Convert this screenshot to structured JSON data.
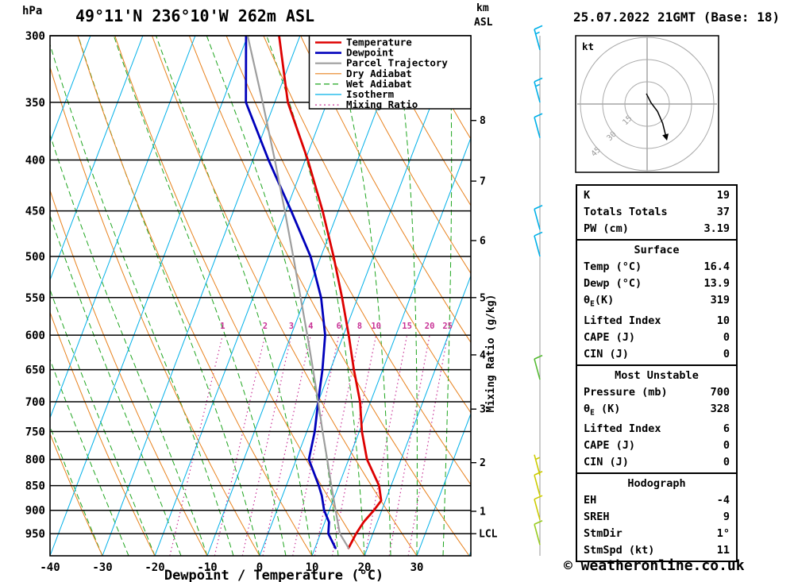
{
  "header": {
    "station_title": "49°11'N 236°10'W 262m ASL",
    "datetime_title": "25.07.2022 21GMT (Base: 18)"
  },
  "footer": {
    "credit": "© weatheronline.co.uk"
  },
  "axes": {
    "pressure_unit": "hPa",
    "pressure_ticks": [
      300,
      350,
      400,
      450,
      500,
      550,
      600,
      650,
      700,
      750,
      800,
      850,
      900,
      950
    ],
    "temp_ticks": [
      -40,
      -30,
      -20,
      -10,
      0,
      10,
      20,
      30
    ],
    "x_label": "Dewpoint / Temperature (°C)",
    "mixing_axis_label": "Mixing Ratio (g/kg)",
    "km_unit_top": "km",
    "asl_unit_top": "ASL",
    "km_ticks": [
      {
        "km": 1,
        "p": 902
      },
      {
        "km": 2,
        "p": 806
      },
      {
        "km": 3,
        "p": 712
      },
      {
        "km": 4,
        "p": 628
      },
      {
        "km": 5,
        "p": 550
      },
      {
        "km": 6,
        "p": 482
      },
      {
        "km": 7,
        "p": 420
      },
      {
        "km": 8,
        "p": 365
      }
    ],
    "lcl": {
      "label": "LCL",
      "p": 950
    }
  },
  "legend": [
    {
      "label": "Temperature",
      "color": "#dd0000",
      "style": "solid",
      "width": 2.6
    },
    {
      "label": "Dewpoint",
      "color": "#0000bb",
      "style": "solid",
      "width": 2.6
    },
    {
      "label": "Parcel Trajectory",
      "color": "#9e9e9e",
      "style": "solid",
      "width": 2.2
    },
    {
      "label": "Dry Adiabat",
      "color": "#e8821e",
      "style": "solid",
      "width": 1.2
    },
    {
      "label": "Wet Adiabat",
      "color": "#1ea51e",
      "style": "dashed",
      "width": 1.2
    },
    {
      "label": "Isotherm",
      "color": "#00b0e8",
      "style": "solid",
      "width": 1.2
    },
    {
      "label": "Mixing Ratio",
      "color": "#c83296",
      "style": "dotted",
      "width": 1.2
    }
  ],
  "chart_data": {
    "type": "line",
    "title": "Skew-T log-P sounding diagram",
    "x_axis": {
      "label": "Dewpoint / Temperature (°C)",
      "range": [
        -40,
        40
      ],
      "unit": "°C"
    },
    "y_axis": {
      "label": "hPa",
      "scale": "log",
      "range": [
        1000,
        300
      ],
      "unit": "hPa"
    },
    "surface": {
      "temp_c": 16.4,
      "dewp_c": 13.9,
      "elevation_m": 262
    },
    "series": [
      {
        "name": "Temperature",
        "color": "#dd0000",
        "points": [
          [
            982,
            16.4
          ],
          [
            950,
            16.8
          ],
          [
            925,
            17.4
          ],
          [
            900,
            18.5
          ],
          [
            880,
            19.2
          ],
          [
            850,
            17.7
          ],
          [
            800,
            13.5
          ],
          [
            750,
            10.5
          ],
          [
            700,
            8.0
          ],
          [
            650,
            4.5
          ],
          [
            600,
            1.0
          ],
          [
            550,
            -3.0
          ],
          [
            500,
            -7.6
          ],
          [
            450,
            -13.0
          ],
          [
            400,
            -19.5
          ],
          [
            350,
            -27.5
          ],
          [
            300,
            -34.0
          ]
        ]
      },
      {
        "name": "Dewpoint",
        "color": "#0000bb",
        "points": [
          [
            982,
            13.9
          ],
          [
            950,
            11.5
          ],
          [
            925,
            10.8
          ],
          [
            900,
            9.0
          ],
          [
            870,
            7.5
          ],
          [
            850,
            6.2
          ],
          [
            800,
            2.4
          ],
          [
            750,
            1.5
          ],
          [
            700,
            0.0
          ],
          [
            650,
            -1.5
          ],
          [
            600,
            -3.5
          ],
          [
            550,
            -7.0
          ],
          [
            500,
            -12.0
          ],
          [
            450,
            -19.0
          ],
          [
            400,
            -27.0
          ],
          [
            350,
            -35.5
          ],
          [
            300,
            -40.3
          ]
        ]
      },
      {
        "name": "Parcel Trajectory",
        "color": "#9e9e9e",
        "points": [
          [
            982,
            16.4
          ],
          [
            950,
            13.7
          ],
          [
            900,
            11.2
          ],
          [
            850,
            8.6
          ],
          [
            800,
            5.9
          ],
          [
            750,
            3.0
          ],
          [
            700,
            0.0
          ],
          [
            650,
            -3.3
          ],
          [
            600,
            -6.9
          ],
          [
            550,
            -10.9
          ],
          [
            500,
            -15.3
          ],
          [
            450,
            -20.2
          ],
          [
            400,
            -25.8
          ],
          [
            350,
            -32.3
          ],
          [
            300,
            -40.0
          ]
        ]
      }
    ],
    "mixing_ratio_lines": [
      1,
      2,
      3,
      4,
      6,
      8,
      10,
      15,
      20,
      25
    ],
    "isotherm_range": [
      -70,
      40
    ],
    "isotherm_step": 10,
    "dry_adiabat_range": [
      -40,
      120
    ],
    "dry_adiabat_step": 10,
    "wet_adiabat_range": [
      -30,
      35
    ],
    "wet_adiabat_step": 5,
    "style": {
      "isobar": "#000000",
      "isotherm": "#00b0e8",
      "dry_adiabat": "#e8821e",
      "wet_adiabat": "#1ea51e",
      "mixing_ratio": "#c83296",
      "temperature": "#dd0000",
      "dewpoint": "#0000bb",
      "parcel": "#9e9e9e"
    },
    "wind_barbs": [
      {
        "p": 310,
        "speed_kt": 15,
        "color": "#00b0e8"
      },
      {
        "p": 350,
        "speed_kt": 15,
        "color": "#00b0e8"
      },
      {
        "p": 380,
        "speed_kt": 10,
        "color": "#00b0e8"
      },
      {
        "p": 470,
        "speed_kt": 10,
        "color": "#00b0e8"
      },
      {
        "p": 500,
        "speed_kt": 10,
        "color": "#00b0e8"
      },
      {
        "p": 665,
        "speed_kt": 10,
        "color": "#55bb33"
      },
      {
        "p": 830,
        "speed_kt": 5,
        "color": "#cccc00"
      },
      {
        "p": 870,
        "speed_kt": 10,
        "color": "#cccc00"
      },
      {
        "p": 920,
        "speed_kt": 10,
        "color": "#cccc00"
      },
      {
        "p": 975,
        "speed_kt": 10,
        "color": "#99cc22"
      }
    ],
    "hodograph": {
      "unit_label": "kt",
      "rings_kt": [
        15,
        30,
        45
      ],
      "trace_kt": [
        [
          -0.5,
          -7
        ],
        [
          2.5,
          -1
        ],
        [
          7,
          5
        ],
        [
          10.5,
          13
        ],
        [
          12.5,
          21
        ]
      ]
    }
  },
  "tables": [
    {
      "rows": [
        {
          "label": "K",
          "value": "19"
        },
        {
          "label": "Totals Totals",
          "value": "37"
        },
        {
          "label": "PW (cm)",
          "value": "3.19"
        }
      ]
    },
    {
      "header": "Surface",
      "rows": [
        {
          "label": "Temp (°C)",
          "value": "16.4"
        },
        {
          "label": "Dewp (°C)",
          "value": "13.9"
        },
        {
          "label": "θ",
          "sub": "E",
          "after": "(K)",
          "value": "319"
        },
        {
          "label": "Lifted Index",
          "value": "10"
        },
        {
          "label": "CAPE (J)",
          "value": "0"
        },
        {
          "label": "CIN (J)",
          "value": "0"
        }
      ]
    },
    {
      "header": "Most Unstable",
      "rows": [
        {
          "label": "Pressure (mb)",
          "value": "700"
        },
        {
          "label": "θ",
          "sub": "E",
          "after": " (K)",
          "value": "328"
        },
        {
          "label": "Lifted Index",
          "value": "6"
        },
        {
          "label": "CAPE (J)",
          "value": "0"
        },
        {
          "label": "CIN (J)",
          "value": "0"
        }
      ]
    },
    {
      "header": "Hodograph",
      "rows": [
        {
          "label": "EH",
          "value": "-4"
        },
        {
          "label": "SREH",
          "value": "9"
        },
        {
          "label": "StmDir",
          "value": "1°"
        },
        {
          "label": "StmSpd (kt)",
          "value": "11"
        }
      ]
    }
  ]
}
